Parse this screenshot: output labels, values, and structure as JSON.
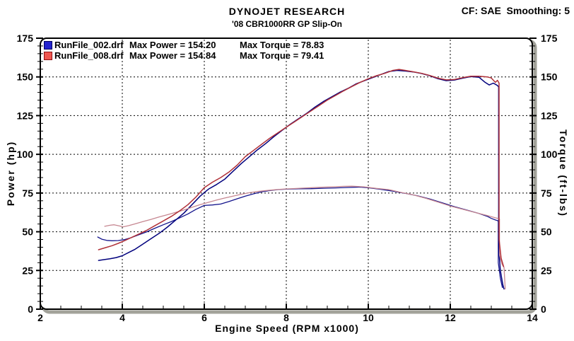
{
  "header": {
    "company": "DYNOJET RESEARCH",
    "run_title": "'08 CBR1000RR GP Slip-On",
    "correction": "CF: SAE  Smoothing: 5"
  },
  "chart_data": {
    "type": "line",
    "title": "DYNOJET RESEARCH",
    "subtitle": "'08 CBR1000RR GP Slip-On",
    "correction_factor": "SAE",
    "smoothing": "5",
    "xlabel": "Engine Speed (RPM x1000)",
    "ylabel_left": "Power (hp)",
    "ylabel_right": "Torque (ft-lbs)",
    "x_range": [
      2,
      14
    ],
    "y_range": [
      0,
      175
    ],
    "x_major_ticks": [
      2,
      4,
      6,
      8,
      10,
      12,
      14
    ],
    "y_major_ticks": [
      0,
      25,
      50,
      75,
      100,
      125,
      150,
      175
    ],
    "x_minor_step": 0.5,
    "y_minor_step": 5,
    "grid_x": [
      4,
      6,
      8,
      10,
      12
    ],
    "grid_y": [
      25,
      50,
      75,
      100,
      125,
      150
    ],
    "grid_style": "dashed",
    "legend_position": "top-left",
    "legend": [
      {
        "file": "RunFile_002.drf",
        "max_power_text": "Max Power = 154.20",
        "max_torque_text": "Max Torque = 78.83",
        "max_power": 154.2,
        "max_torque": 78.83,
        "swatch_fill": "#2323cf",
        "swatch_border": "#00005f"
      },
      {
        "file": "RunFile_008.drf",
        "max_power_text": "Max Power = 154.84",
        "max_torque_text": "Max Torque = 79.41",
        "max_power": 154.84,
        "max_torque": 79.41,
        "swatch_fill": "#ef5750",
        "swatch_border": "#8e0f12"
      }
    ],
    "series": [
      {
        "name": "torque-002",
        "run": "RunFile_002.drf",
        "unit": "ft-lbs",
        "color": "#14148c",
        "width": 1.3,
        "points": [
          [
            3.4,
            46.6
          ],
          [
            3.5,
            45.2
          ],
          [
            3.62,
            44.4
          ],
          [
            3.75,
            44.2
          ],
          [
            3.9,
            44.3
          ],
          [
            4.05,
            44.9
          ],
          [
            4.2,
            46.0
          ],
          [
            4.4,
            48.0
          ],
          [
            4.6,
            50.0
          ],
          [
            4.8,
            52.3
          ],
          [
            5.0,
            54.5
          ],
          [
            5.2,
            56.6
          ],
          [
            5.4,
            59.0
          ],
          [
            5.6,
            61.5
          ],
          [
            5.8,
            64.5
          ],
          [
            6.0,
            67.0
          ],
          [
            6.2,
            67.3
          ],
          [
            6.4,
            67.9
          ],
          [
            6.6,
            69.5
          ],
          [
            6.8,
            71.3
          ],
          [
            7.0,
            73.0
          ],
          [
            7.2,
            74.5
          ],
          [
            7.4,
            75.8
          ],
          [
            7.6,
            76.6
          ],
          [
            7.8,
            77.2
          ],
          [
            8.0,
            77.5
          ],
          [
            8.3,
            77.7
          ],
          [
            8.6,
            77.8
          ],
          [
            8.9,
            78.1
          ],
          [
            9.2,
            78.3
          ],
          [
            9.5,
            78.6
          ],
          [
            9.8,
            78.83
          ],
          [
            10.0,
            78.4
          ],
          [
            10.3,
            77.4
          ],
          [
            10.6,
            76.2
          ],
          [
            10.9,
            74.8
          ],
          [
            11.2,
            73.2
          ],
          [
            11.5,
            71.2
          ],
          [
            11.8,
            68.7
          ],
          [
            12.1,
            66.2
          ],
          [
            12.4,
            64.0
          ],
          [
            12.7,
            61.8
          ],
          [
            12.9,
            60.0
          ],
          [
            13.0,
            58.6
          ],
          [
            13.1,
            57.6
          ],
          [
            13.17,
            57.0
          ],
          [
            13.17,
            30.0
          ],
          [
            13.22,
            20.0
          ],
          [
            13.27,
            14.0
          ]
        ]
      },
      {
        "name": "power-002",
        "run": "RunFile_002.drf",
        "unit": "hp",
        "color": "#00007d",
        "width": 1.5,
        "points": [
          [
            3.42,
            31.5
          ],
          [
            3.55,
            32.0
          ],
          [
            3.7,
            32.6
          ],
          [
            3.85,
            33.3
          ],
          [
            4.0,
            34.5
          ],
          [
            4.15,
            36.5
          ],
          [
            4.3,
            38.5
          ],
          [
            4.5,
            42.0
          ],
          [
            4.7,
            45.5
          ],
          [
            4.9,
            49.0
          ],
          [
            5.1,
            53.0
          ],
          [
            5.3,
            57.5
          ],
          [
            5.5,
            62.0
          ],
          [
            5.7,
            67.5
          ],
          [
            5.9,
            73.0
          ],
          [
            6.1,
            77.5
          ],
          [
            6.3,
            80.5
          ],
          [
            6.5,
            84.0
          ],
          [
            6.7,
            89.0
          ],
          [
            6.9,
            94.0
          ],
          [
            7.1,
            98.5
          ],
          [
            7.3,
            103.0
          ],
          [
            7.5,
            107.0
          ],
          [
            7.7,
            111.5
          ],
          [
            7.9,
            115.5
          ],
          [
            8.1,
            119.5
          ],
          [
            8.3,
            123.0
          ],
          [
            8.5,
            126.5
          ],
          [
            8.7,
            130.5
          ],
          [
            8.9,
            134.0
          ],
          [
            9.1,
            137.0
          ],
          [
            9.3,
            140.0
          ],
          [
            9.5,
            142.5
          ],
          [
            9.7,
            145.5
          ],
          [
            9.9,
            147.5
          ],
          [
            10.1,
            149.5
          ],
          [
            10.3,
            151.5
          ],
          [
            10.5,
            153.5
          ],
          [
            10.7,
            154.2
          ],
          [
            10.9,
            153.8
          ],
          [
            11.1,
            153.2
          ],
          [
            11.3,
            152.2
          ],
          [
            11.5,
            150.8
          ],
          [
            11.7,
            148.8
          ],
          [
            11.9,
            147.6
          ],
          [
            12.1,
            148.0
          ],
          [
            12.3,
            149.2
          ],
          [
            12.5,
            150.2
          ],
          [
            12.7,
            149.8
          ],
          [
            12.85,
            146.5
          ],
          [
            12.95,
            144.8
          ],
          [
            13.05,
            146.0
          ],
          [
            13.15,
            144.5
          ],
          [
            13.18,
            143.5
          ],
          [
            13.18,
            40.0
          ],
          [
            13.22,
            25.0
          ],
          [
            13.28,
            16.0
          ],
          [
            13.31,
            13.0
          ]
        ]
      },
      {
        "name": "torque-008",
        "run": "RunFile_008.drf",
        "unit": "ft-lbs",
        "color": "#c68791",
        "width": 1.3,
        "points": [
          [
            3.57,
            53.5
          ],
          [
            3.7,
            54.2
          ],
          [
            3.8,
            54.5
          ],
          [
            3.92,
            53.8
          ],
          [
            4.02,
            53.2
          ],
          [
            4.15,
            53.9
          ],
          [
            4.3,
            55.0
          ],
          [
            4.5,
            56.5
          ],
          [
            4.7,
            58.0
          ],
          [
            4.9,
            59.6
          ],
          [
            5.1,
            61.0
          ],
          [
            5.3,
            62.5
          ],
          [
            5.5,
            64.0
          ],
          [
            5.7,
            65.8
          ],
          [
            5.9,
            67.5
          ],
          [
            6.1,
            69.0
          ],
          [
            6.3,
            70.5
          ],
          [
            6.5,
            71.8
          ],
          [
            6.7,
            73.0
          ],
          [
            6.9,
            74.2
          ],
          [
            7.1,
            75.2
          ],
          [
            7.3,
            76.0
          ],
          [
            7.5,
            76.6
          ],
          [
            7.7,
            77.1
          ],
          [
            7.9,
            77.5
          ],
          [
            8.2,
            77.9
          ],
          [
            8.5,
            78.3
          ],
          [
            8.8,
            78.7
          ],
          [
            9.1,
            79.0
          ],
          [
            9.4,
            79.3
          ],
          [
            9.6,
            79.41
          ],
          [
            9.9,
            79.0
          ],
          [
            10.2,
            78.0
          ],
          [
            10.5,
            77.2
          ],
          [
            10.8,
            75.4
          ],
          [
            11.1,
            73.8
          ],
          [
            11.4,
            71.6
          ],
          [
            11.7,
            69.2
          ],
          [
            12.0,
            66.6
          ],
          [
            12.3,
            64.5
          ],
          [
            12.6,
            62.5
          ],
          [
            12.9,
            60.5
          ],
          [
            13.1,
            59.0
          ],
          [
            13.2,
            58.4
          ],
          [
            13.2,
            35.0
          ],
          [
            13.26,
            29.0
          ],
          [
            13.31,
            27.0
          ],
          [
            13.34,
            13.0
          ]
        ]
      },
      {
        "name": "power-008",
        "run": "RunFile_008.drf",
        "unit": "hp",
        "color": "#b03038",
        "width": 1.5,
        "points": [
          [
            3.42,
            38.4
          ],
          [
            3.6,
            39.8
          ],
          [
            3.75,
            41.0
          ],
          [
            3.9,
            42.5
          ],
          [
            4.05,
            44.2
          ],
          [
            4.2,
            46.0
          ],
          [
            4.4,
            48.5
          ],
          [
            4.6,
            51.0
          ],
          [
            4.8,
            54.0
          ],
          [
            5.0,
            57.0
          ],
          [
            5.2,
            60.0
          ],
          [
            5.4,
            63.5
          ],
          [
            5.6,
            67.5
          ],
          [
            5.8,
            72.5
          ],
          [
            6.0,
            78.5
          ],
          [
            6.2,
            82.0
          ],
          [
            6.4,
            85.0
          ],
          [
            6.6,
            88.5
          ],
          [
            6.8,
            93.0
          ],
          [
            7.0,
            98.5
          ],
          [
            7.2,
            102.5
          ],
          [
            7.4,
            106.5
          ],
          [
            7.6,
            110.5
          ],
          [
            7.8,
            114.0
          ],
          [
            8.0,
            117.5
          ],
          [
            8.2,
            121.0
          ],
          [
            8.4,
            124.5
          ],
          [
            8.6,
            128.0
          ],
          [
            8.8,
            131.5
          ],
          [
            9.0,
            135.0
          ],
          [
            9.2,
            138.0
          ],
          [
            9.4,
            141.0
          ],
          [
            9.6,
            143.8
          ],
          [
            9.8,
            146.5
          ],
          [
            10.0,
            148.8
          ],
          [
            10.2,
            150.8
          ],
          [
            10.4,
            152.3
          ],
          [
            10.6,
            154.2
          ],
          [
            10.75,
            154.84
          ],
          [
            10.9,
            154.2
          ],
          [
            11.1,
            153.3
          ],
          [
            11.3,
            152.3
          ],
          [
            11.5,
            150.9
          ],
          [
            11.7,
            149.2
          ],
          [
            11.9,
            148.1
          ],
          [
            12.1,
            148.3
          ],
          [
            12.3,
            149.5
          ],
          [
            12.5,
            150.4
          ],
          [
            12.7,
            150.4
          ],
          [
            12.9,
            150.0
          ],
          [
            13.0,
            149.3
          ],
          [
            13.1,
            146.5
          ],
          [
            13.15,
            147.8
          ],
          [
            13.19,
            146.0
          ],
          [
            13.19,
            45.0
          ],
          [
            13.24,
            33.0
          ],
          [
            13.3,
            27.5
          ]
        ]
      }
    ]
  }
}
